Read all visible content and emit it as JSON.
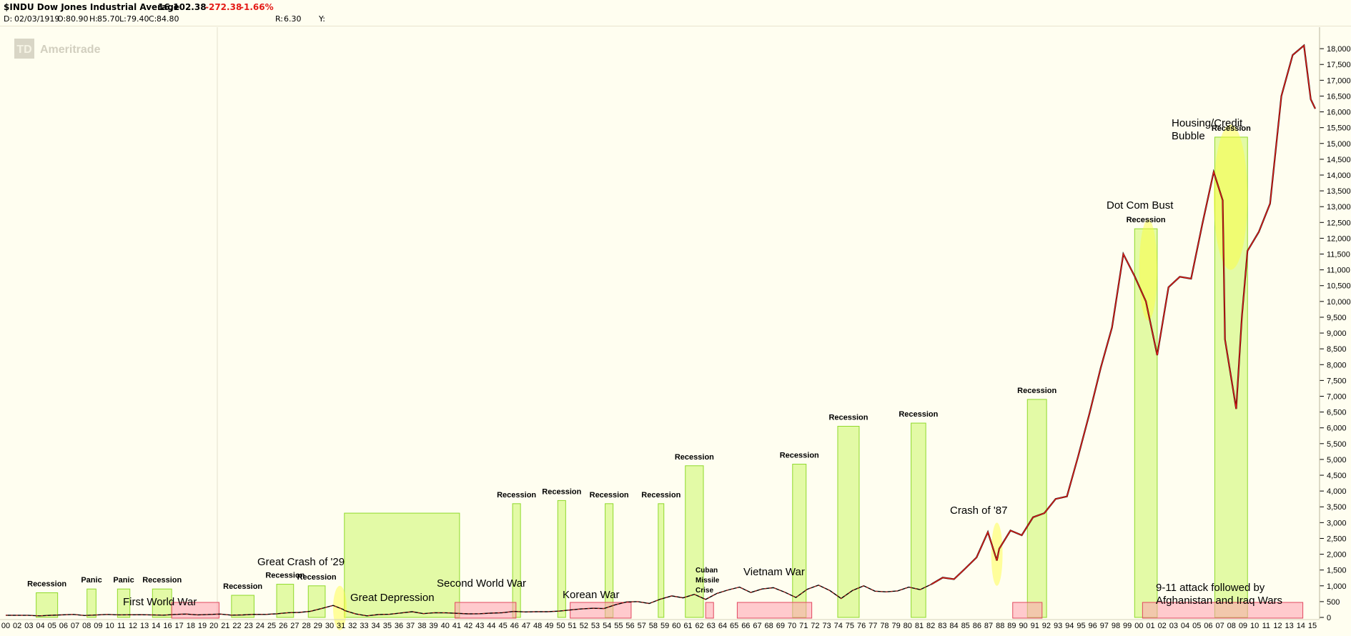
{
  "header": {
    "symbol": "$INDU Dow Jones Industrial Average",
    "last": "16,102.38",
    "change": "-272.38",
    "change_pct": "-1.66%",
    "date_label": "D:",
    "date": "02/03/1919",
    "open_label": "O:",
    "open": "80.90",
    "high_label": "H:",
    "high": "85.70",
    "low_label": "L:",
    "low": "79.40",
    "close_label": "C:",
    "close": "84.80",
    "r_label": "R:",
    "r_value": "6.30",
    "y_label": "Y:"
  },
  "watermark": {
    "brand": "Ameritrade",
    "mark": "TD"
  },
  "chart_data": {
    "type": "line",
    "ylim": [
      0,
      18500
    ],
    "yticks": [
      0,
      500,
      1000,
      1500,
      2000,
      2500,
      3000,
      3500,
      4000,
      4500,
      5000,
      5500,
      6000,
      6500,
      7000,
      7500,
      8000,
      8500,
      9000,
      9500,
      10000,
      10500,
      11000,
      11500,
      12000,
      12500,
      13000,
      13500,
      14000,
      14500,
      15000,
      15500,
      16000,
      16500,
      17000,
      17500,
      18000
    ],
    "ytick_labels": [
      "0",
      "500",
      "1,000",
      "1,500",
      "2,000",
      "2,500",
      "3,000",
      "3,500",
      "4,000",
      "4,500",
      "5,000",
      "5,500",
      "6,000",
      "6,500",
      "7,000",
      "7,500",
      "8,000",
      "8,500",
      "9,000",
      "9,500",
      "10,000",
      "10,500",
      "11,000",
      "11,500",
      "12,000",
      "12,500",
      "13,000",
      "13,500",
      "14,000",
      "14,500",
      "15,000",
      "15,500",
      "16,000",
      "16,500",
      "17,000",
      "17,500",
      "18,000"
    ],
    "xlim": [
      1900,
      2016
    ],
    "xtick_labels": [
      "00",
      "02",
      "03",
      "04",
      "05",
      "06",
      "07",
      "08",
      "09",
      "10",
      "11",
      "12",
      "13",
      "14",
      "16",
      "17",
      "18",
      "19",
      "20",
      "21",
      "22",
      "23",
      "24",
      "25",
      "26",
      "27",
      "28",
      "29",
      "30",
      "31",
      "32",
      "33",
      "34",
      "35",
      "36",
      "37",
      "38",
      "39",
      "40",
      "41",
      "42",
      "43",
      "44",
      "45",
      "46",
      "47",
      "48",
      "49",
      "50",
      "51",
      "52",
      "53",
      "54",
      "55",
      "56",
      "57",
      "58",
      "59",
      "60",
      "61",
      "62",
      "63",
      "64",
      "65",
      "66",
      "67",
      "68",
      "69",
      "70",
      "71",
      "72",
      "73",
      "74",
      "75",
      "76",
      "77",
      "78",
      "79",
      "80",
      "81",
      "82",
      "83",
      "84",
      "85",
      "86",
      "87",
      "88",
      "89",
      "90",
      "91",
      "92",
      "93",
      "94",
      "95",
      "96",
      "97",
      "98",
      "99",
      "00",
      "01",
      "02",
      "03",
      "04",
      "05",
      "06",
      "07",
      "08",
      "09",
      "10",
      "11",
      "12",
      "13",
      "14",
      "15"
    ],
    "series": [
      {
        "values": [
          [
            1900,
            68
          ],
          [
            1902,
            65
          ],
          [
            1903,
            50
          ],
          [
            1904,
            68
          ],
          [
            1906,
            96
          ],
          [
            1907,
            60
          ],
          [
            1909,
            95
          ],
          [
            1910,
            82
          ],
          [
            1912,
            85
          ],
          [
            1914,
            72
          ],
          [
            1915,
            95
          ],
          [
            1916,
            106
          ],
          [
            1917,
            82
          ],
          [
            1919,
            107
          ],
          [
            1920,
            72
          ],
          [
            1921,
            80
          ],
          [
            1922,
            98
          ],
          [
            1923,
            96
          ],
          [
            1924,
            115
          ],
          [
            1925,
            150
          ],
          [
            1926,
            158
          ],
          [
            1927,
            195
          ],
          [
            1928,
            285
          ],
          [
            1929,
            380
          ],
          [
            1929.9,
            250
          ],
          [
            1930,
            220
          ],
          [
            1931,
            110
          ],
          [
            1932,
            50
          ],
          [
            1933,
            90
          ],
          [
            1934,
            100
          ],
          [
            1935,
            140
          ],
          [
            1936,
            180
          ],
          [
            1937,
            120
          ],
          [
            1938,
            150
          ],
          [
            1939,
            145
          ],
          [
            1940,
            130
          ],
          [
            1941,
            112
          ],
          [
            1942,
            118
          ],
          [
            1943,
            135
          ],
          [
            1944,
            150
          ],
          [
            1945,
            190
          ],
          [
            1946,
            175
          ],
          [
            1947,
            180
          ],
          [
            1948,
            180
          ],
          [
            1949,
            200
          ],
          [
            1950,
            235
          ],
          [
            1951,
            270
          ],
          [
            1952,
            290
          ],
          [
            1953,
            280
          ],
          [
            1954,
            400
          ],
          [
            1955,
            490
          ],
          [
            1956,
            500
          ],
          [
            1957,
            440
          ],
          [
            1958,
            580
          ],
          [
            1959,
            680
          ],
          [
            1960,
            620
          ],
          [
            1961,
            730
          ],
          [
            1962,
            570
          ],
          [
            1963,
            760
          ],
          [
            1964,
            870
          ],
          [
            1965,
            960
          ],
          [
            1966,
            790
          ],
          [
            1967,
            900
          ],
          [
            1968,
            940
          ],
          [
            1969,
            800
          ],
          [
            1970,
            630
          ],
          [
            1971,
            890
          ],
          [
            1972,
            1020
          ],
          [
            1973,
            850
          ],
          [
            1974,
            600
          ],
          [
            1975,
            850
          ],
          [
            1976,
            1000
          ],
          [
            1977,
            830
          ],
          [
            1978,
            810
          ],
          [
            1979,
            840
          ],
          [
            1980,
            960
          ],
          [
            1981,
            880
          ],
          [
            1982,
            1050
          ],
          [
            1983,
            1260
          ],
          [
            1984,
            1210
          ],
          [
            1985,
            1550
          ],
          [
            1986,
            1900
          ],
          [
            1987,
            2700
          ],
          [
            1987.8,
            1800
          ],
          [
            1988,
            2170
          ],
          [
            1989,
            2750
          ],
          [
            1990,
            2600
          ],
          [
            1991,
            3170
          ],
          [
            1992,
            3300
          ],
          [
            1993,
            3750
          ],
          [
            1994,
            3830
          ],
          [
            1995,
            5100
          ],
          [
            1996,
            6450
          ],
          [
            1997,
            7900
          ],
          [
            1998,
            9180
          ],
          [
            1999,
            11500
          ],
          [
            2000,
            10800
          ],
          [
            2001,
            10000
          ],
          [
            2002,
            8300
          ],
          [
            2003,
            10450
          ],
          [
            2004,
            10780
          ],
          [
            2005,
            10720
          ],
          [
            2006,
            12460
          ],
          [
            2007,
            14100
          ],
          [
            2007.8,
            13200
          ],
          [
            2008,
            8800
          ],
          [
            2009,
            6600
          ],
          [
            2009.5,
            9500
          ],
          [
            2010,
            11600
          ],
          [
            2011,
            12200
          ],
          [
            2012,
            13100
          ],
          [
            2013,
            16500
          ],
          [
            2014,
            17800
          ],
          [
            2015,
            18100
          ],
          [
            2015.6,
            16400
          ],
          [
            2016,
            16100
          ]
        ]
      }
    ],
    "recessions": [
      {
        "label": "Recession",
        "x0": 1902.7,
        "x1": 1904.6,
        "top": 780
      },
      {
        "label": "Panic",
        "x0": 1907.2,
        "x1": 1908.0,
        "top": 900
      },
      {
        "label": "Panic",
        "x0": 1909.9,
        "x1": 1911.0,
        "top": 900
      },
      {
        "label": "Recession",
        "x0": 1913.0,
        "x1": 1914.7,
        "top": 900
      },
      {
        "label": "Recession",
        "x0": 1920.0,
        "x1": 1922.0,
        "top": 700
      },
      {
        "label": "Recession",
        "x0": 1924.0,
        "x1": 1925.5,
        "top": 1050
      },
      {
        "label": "Recession",
        "x0": 1926.8,
        "x1": 1928.3,
        "top": 1000
      },
      {
        "label": "",
        "x0": 1930.0,
        "x1": 1940.2,
        "top": 3300
      },
      {
        "label": "Recession",
        "x0": 1944.9,
        "x1": 1945.6,
        "top": 3600
      },
      {
        "label": "Recession",
        "x0": 1948.9,
        "x1": 1949.6,
        "top": 3700
      },
      {
        "label": "Recession",
        "x0": 1953.1,
        "x1": 1953.8,
        "top": 3600
      },
      {
        "label": "Recession",
        "x0": 1957.8,
        "x1": 1958.3,
        "top": 3600
      },
      {
        "label": "Recession",
        "x0": 1960.2,
        "x1": 1961.8,
        "top": 4800
      },
      {
        "label": "Recession",
        "x0": 1969.7,
        "x1": 1970.9,
        "top": 4850
      },
      {
        "label": "Recession",
        "x0": 1973.7,
        "x1": 1975.6,
        "top": 6050
      },
      {
        "label": "Recession",
        "x0": 1980.2,
        "x1": 1981.5,
        "top": 6150
      },
      {
        "label": "Recession",
        "x0": 1990.5,
        "x1": 1992.2,
        "top": 6900
      },
      {
        "label": "Recession",
        "x0": 2000.0,
        "x1": 2002.0,
        "top": 12300
      },
      {
        "label": "Recession",
        "x0": 2007.1,
        "x1": 2010.0,
        "top": 15200
      }
    ],
    "wars": [
      {
        "label": "First World War",
        "x0": 1914.7,
        "x1": 1918.9
      },
      {
        "label": "Second World War",
        "x0": 1939.8,
        "x1": 1945.2
      },
      {
        "label": "Korean War",
        "x0": 1950.0,
        "x1": 1955.4
      },
      {
        "label": "Cuban Missile Crise",
        "x0": 1962.0,
        "x1": 1962.7
      },
      {
        "label": "Vietnam War",
        "x0": 1964.8,
        "x1": 1971.4
      },
      {
        "label": "",
        "x0": 1989.2,
        "x1": 1991.8
      },
      {
        "label": "",
        "x0": 2000.7,
        "x1": 2014.9
      }
    ],
    "events": [
      {
        "label": "Great Crash of '29",
        "cx": 1929.6,
        "cy": 300,
        "rx": 0.6,
        "ry": 700
      },
      {
        "label": "Crash of '87",
        "cx": 1987.8,
        "cy": 2000,
        "rx": 0.5,
        "ry": 1000
      },
      {
        "label": "Dot Com Bust",
        "cx": 2001.2,
        "cy": 11000,
        "rx": 0.8,
        "ry": 1600
      },
      {
        "label": "Housing/Credit Bubble",
        "cx": 2008.5,
        "cy": 13300,
        "rx": 1.5,
        "ry": 2300
      }
    ],
    "annotations": [
      "Great Depression",
      "9-11 attack followed by Afghanistan and Iraq Wars"
    ],
    "grid": false,
    "legend": "none"
  }
}
